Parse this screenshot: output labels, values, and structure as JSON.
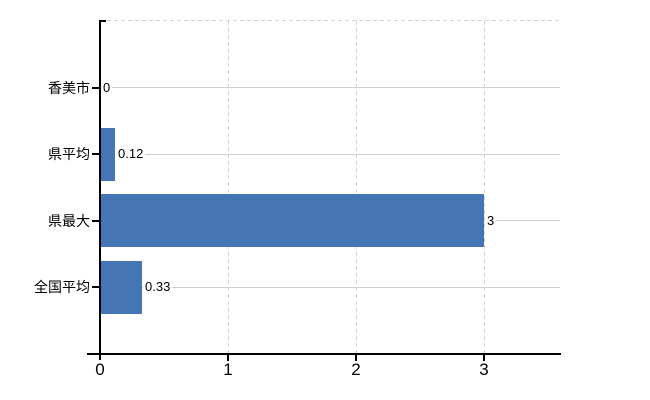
{
  "chart_data": {
    "type": "bar",
    "orientation": "horizontal",
    "title": "",
    "xlabel": "",
    "ylabel": "",
    "categories": [
      "香美市",
      "県平均",
      "県最大",
      "全国平均"
    ],
    "values": [
      0,
      0.12,
      3,
      0.33
    ],
    "value_labels": [
      "0",
      "0.12",
      "3",
      "0.33"
    ],
    "x_ticks": [
      0,
      1,
      2,
      3
    ],
    "x_tick_labels": [
      "0",
      "1",
      "2",
      "3"
    ],
    "xlim": [
      0,
      3.6
    ],
    "grid": true,
    "legend": false,
    "colors": {
      "bar": "#4575b4",
      "horizontal_gridline": "#cbd4cb",
      "vertical_gridline": "#d5cfd5",
      "axis": "#000000",
      "text": "#000000",
      "background": "#ffffff"
    }
  }
}
